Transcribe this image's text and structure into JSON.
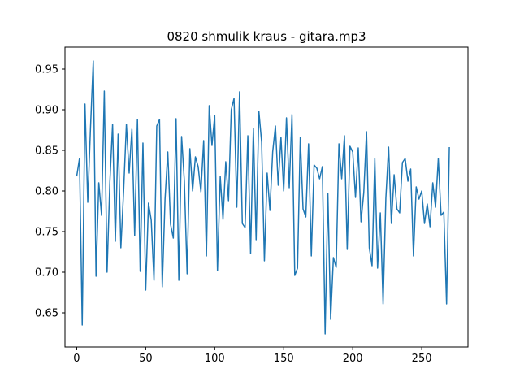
{
  "chart_data": {
    "type": "line",
    "title": "0820 shmulik kraus - gitara.mp3",
    "xlabel": "",
    "ylabel": "",
    "xlim": [
      -8.5,
      283.5
    ],
    "ylim": [
      0.608,
      0.977
    ],
    "grid": false,
    "legend": "none",
    "xticks": [
      0,
      50,
      100,
      150,
      200,
      250
    ],
    "yticks": [
      0.65,
      0.7,
      0.75,
      0.8,
      0.85,
      0.9,
      0.95
    ],
    "series": [
      {
        "name": "",
        "color": "#1f77b4",
        "x": [
          0,
          2,
          4,
          6,
          8,
          10,
          12,
          14,
          16,
          18,
          20,
          22,
          24,
          26,
          28,
          30,
          32,
          34,
          36,
          38,
          40,
          42,
          44,
          46,
          48,
          50,
          52,
          54,
          56,
          58,
          60,
          62,
          64,
          66,
          68,
          70,
          72,
          74,
          76,
          78,
          80,
          82,
          84,
          86,
          88,
          90,
          92,
          94,
          96,
          98,
          100,
          102,
          104,
          106,
          108,
          110,
          112,
          114,
          116,
          118,
          120,
          122,
          124,
          126,
          128,
          130,
          132,
          134,
          136,
          138,
          140,
          142,
          144,
          146,
          148,
          150,
          152,
          154,
          156,
          158,
          160,
          162,
          164,
          166,
          168,
          170,
          172,
          174,
          176,
          178,
          180,
          182,
          184,
          186,
          188,
          190,
          192,
          194,
          196,
          198,
          200,
          202,
          204,
          206,
          208,
          210,
          212,
          214,
          216,
          218,
          220,
          222,
          224,
          226,
          228,
          230,
          232,
          234,
          236,
          238,
          240,
          242,
          244,
          246,
          248,
          250,
          252,
          254,
          256,
          258,
          260,
          262,
          264,
          266,
          268,
          270
        ],
        "y": [
          0.818,
          0.84,
          0.635,
          0.907,
          0.786,
          0.878,
          0.96,
          0.695,
          0.81,
          0.77,
          0.923,
          0.7,
          0.81,
          0.882,
          0.738,
          0.87,
          0.73,
          0.8,
          0.882,
          0.822,
          0.876,
          0.745,
          0.888,
          0.701,
          0.859,
          0.678,
          0.785,
          0.764,
          0.69,
          0.88,
          0.888,
          0.682,
          0.79,
          0.848,
          0.759,
          0.742,
          0.889,
          0.69,
          0.867,
          0.812,
          0.698,
          0.852,
          0.8,
          0.842,
          0.83,
          0.799,
          0.862,
          0.72,
          0.905,
          0.856,
          0.893,
          0.702,
          0.818,
          0.765,
          0.836,
          0.788,
          0.9,
          0.914,
          0.78,
          0.922,
          0.76,
          0.755,
          0.868,
          0.723,
          0.877,
          0.74,
          0.898,
          0.86,
          0.714,
          0.822,
          0.776,
          0.848,
          0.88,
          0.807,
          0.866,
          0.8,
          0.89,
          0.804,
          0.894,
          0.696,
          0.705,
          0.866,
          0.778,
          0.768,
          0.858,
          0.72,
          0.832,
          0.828,
          0.815,
          0.83,
          0.624,
          0.797,
          0.642,
          0.718,
          0.706,
          0.858,
          0.815,
          0.868,
          0.728,
          0.855,
          0.848,
          0.792,
          0.853,
          0.762,
          0.798,
          0.873,
          0.73,
          0.708,
          0.84,
          0.705,
          0.773,
          0.661,
          0.791,
          0.854,
          0.76,
          0.82,
          0.778,
          0.773,
          0.835,
          0.84,
          0.812,
          0.827,
          0.72,
          0.805,
          0.79,
          0.8,
          0.76,
          0.784,
          0.756,
          0.81,
          0.78,
          0.84,
          0.77,
          0.774,
          0.661,
          0.854
        ]
      }
    ]
  }
}
